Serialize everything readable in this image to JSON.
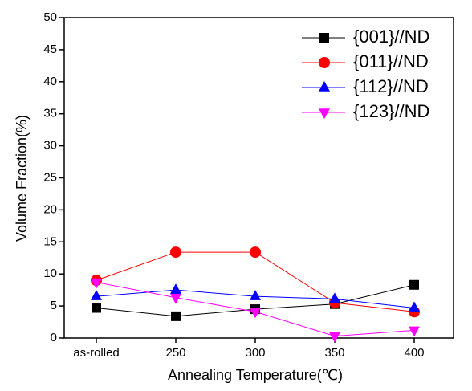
{
  "chart_data": {
    "type": "line",
    "x_label": "Annealing Temperature(℃)",
    "y_label": "Volume Fraction(%)",
    "categories": [
      "as-rolled",
      "250",
      "300",
      "350",
      "400"
    ],
    "series": [
      {
        "name": "{001}//ND",
        "color": "#000000",
        "marker": "square",
        "values": [
          4.7,
          3.4,
          4.5,
          5.3,
          8.3
        ]
      },
      {
        "name": "{011}//ND",
        "color": "#ff0000",
        "marker": "circle",
        "values": [
          9.0,
          13.4,
          13.4,
          5.5,
          4.1
        ]
      },
      {
        "name": "{112}//ND",
        "color": "#0000ff",
        "marker": "triangle-up",
        "values": [
          6.5,
          7.5,
          6.5,
          6.1,
          4.7
        ]
      },
      {
        "name": "{123}//ND",
        "color": "#ff00ff",
        "marker": "triangle-down",
        "values": [
          8.7,
          6.3,
          4.1,
          0.3,
          1.2
        ]
      }
    ],
    "ylim": [
      0,
      50
    ],
    "yticks": [
      0,
      5,
      10,
      15,
      20,
      25,
      30,
      35,
      40,
      45,
      50
    ],
    "legend": "upper right"
  }
}
